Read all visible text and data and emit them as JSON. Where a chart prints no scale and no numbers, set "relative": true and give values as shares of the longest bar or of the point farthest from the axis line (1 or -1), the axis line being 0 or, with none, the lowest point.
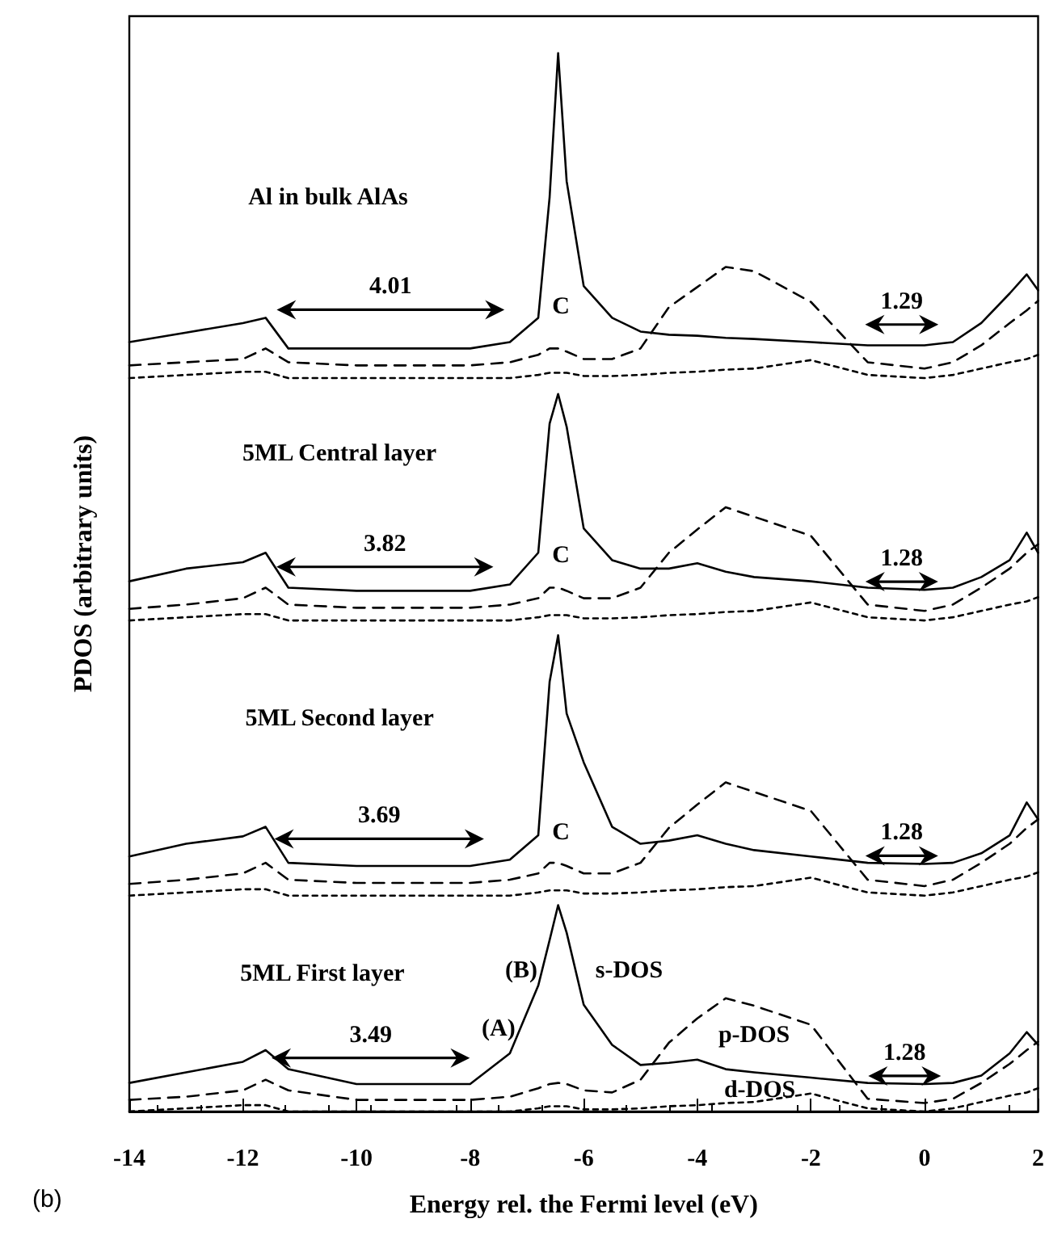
{
  "chart_data": {
    "type": "line",
    "relative": true,
    "xlabel": "Energy rel. the Fermi level (eV)",
    "ylabel": "PDOS (arbitrary units)",
    "xlim": [
      -14,
      2
    ],
    "xticks": [
      -14,
      -12,
      -10,
      -8,
      -6,
      -4,
      -2,
      0,
      2
    ],
    "grid": false,
    "marker": "none",
    "x": [
      -14,
      -13,
      -12,
      -11.6,
      -11.2,
      -10,
      -8,
      -7.3,
      -6.8,
      -6.6,
      -6.45,
      -6.3,
      -6.0,
      -5.5,
      -5,
      -4.5,
      -4,
      -3.5,
      -3,
      -2,
      -1,
      0,
      0.5,
      1,
      1.5,
      1.8,
      2
    ],
    "series": [
      {
        "color": "#000000",
        "line_style": "solid",
        "values": [
          0.727,
          0.736,
          0.745,
          0.75,
          0.721,
          0.721,
          0.721,
          0.727,
          0.75,
          0.864,
          1,
          0.879,
          0.78,
          0.75,
          0.737,
          0.734,
          0.733,
          0.731,
          0.73,
          0.727,
          0.724,
          0.724,
          0.727,
          0.745,
          0.773,
          0.791,
          0.776
        ]
      },
      {
        "color": "#000000",
        "line_style": "dashed",
        "values": [
          0.705,
          0.708,
          0.711,
          0.721,
          0.708,
          0.705,
          0.705,
          0.708,
          0.715,
          0.721,
          0.721,
          0.718,
          0.711,
          0.711,
          0.721,
          0.76,
          0.779,
          0.798,
          0.794,
          0.765,
          0.708,
          0.702,
          0.708,
          0.724,
          0.745,
          0.757,
          0.766
        ]
      },
      {
        "color": "#000000",
        "line_style": "dotted",
        "values": [
          0.693,
          0.696,
          0.699,
          0.699,
          0.693,
          0.693,
          0.693,
          0.693,
          0.696,
          0.698,
          0.698,
          0.698,
          0.695,
          0.695,
          0.696,
          0.698,
          0.699,
          0.701,
          0.702,
          0.71,
          0.696,
          0.693,
          0.696,
          0.702,
          0.708,
          0.711,
          0.715
        ]
      },
      {
        "color": "#000000",
        "line_style": "solid",
        "values": [
          0.501,
          0.513,
          0.519,
          0.528,
          0.495,
          0.492,
          0.492,
          0.498,
          0.528,
          0.65,
          0.678,
          0.647,
          0.551,
          0.521,
          0.513,
          0.513,
          0.518,
          0.51,
          0.505,
          0.501,
          0.495,
          0.493,
          0.495,
          0.505,
          0.521,
          0.547,
          0.528
        ]
      },
      {
        "color": "#000000",
        "line_style": "dashed",
        "values": [
          0.475,
          0.479,
          0.485,
          0.495,
          0.479,
          0.476,
          0.476,
          0.479,
          0.485,
          0.495,
          0.495,
          0.492,
          0.485,
          0.485,
          0.495,
          0.528,
          0.55,
          0.571,
          0.562,
          0.544,
          0.479,
          0.473,
          0.479,
          0.495,
          0.513,
          0.528,
          0.536
        ]
      },
      {
        "color": "#000000",
        "line_style": "dotted",
        "values": [
          0.464,
          0.467,
          0.47,
          0.47,
          0.464,
          0.464,
          0.464,
          0.464,
          0.467,
          0.469,
          0.469,
          0.469,
          0.466,
          0.466,
          0.467,
          0.469,
          0.47,
          0.472,
          0.473,
          0.481,
          0.467,
          0.464,
          0.467,
          0.473,
          0.479,
          0.482,
          0.486
        ]
      },
      {
        "color": "#000000",
        "line_style": "solid",
        "values": [
          0.241,
          0.253,
          0.26,
          0.269,
          0.235,
          0.232,
          0.232,
          0.238,
          0.261,
          0.406,
          0.45,
          0.376,
          0.33,
          0.269,
          0.253,
          0.256,
          0.261,
          0.253,
          0.247,
          0.241,
          0.235,
          0.234,
          0.235,
          0.244,
          0.261,
          0.292,
          0.276
        ]
      },
      {
        "color": "#000000",
        "line_style": "dashed",
        "values": [
          0.215,
          0.219,
          0.225,
          0.235,
          0.219,
          0.216,
          0.216,
          0.219,
          0.225,
          0.235,
          0.235,
          0.232,
          0.225,
          0.225,
          0.235,
          0.268,
          0.29,
          0.311,
          0.302,
          0.284,
          0.219,
          0.213,
          0.219,
          0.235,
          0.253,
          0.268,
          0.276
        ]
      },
      {
        "color": "#000000",
        "line_style": "dotted",
        "values": [
          0.204,
          0.207,
          0.21,
          0.21,
          0.204,
          0.204,
          0.204,
          0.204,
          0.207,
          0.209,
          0.209,
          0.209,
          0.206,
          0.206,
          0.207,
          0.209,
          0.21,
          0.212,
          0.213,
          0.221,
          0.207,
          0.204,
          0.207,
          0.213,
          0.219,
          0.222,
          0.226
        ]
      },
      {
        "color": "#000000",
        "line_style": "solid",
        "values": [
          0.027,
          0.037,
          0.047,
          0.058,
          0.04,
          0.026,
          0.026,
          0.055,
          0.119,
          0.162,
          0.195,
          0.169,
          0.101,
          0.063,
          0.044,
          0.046,
          0.049,
          0.04,
          0.037,
          0.032,
          0.027,
          0.026,
          0.027,
          0.034,
          0.055,
          0.075,
          0.063
        ]
      },
      {
        "color": "#000000",
        "line_style": "dashed",
        "values": [
          0.011,
          0.014,
          0.02,
          0.03,
          0.02,
          0.011,
          0.011,
          0.014,
          0.022,
          0.026,
          0.027,
          0.026,
          0.02,
          0.018,
          0.03,
          0.065,
          0.088,
          0.107,
          0.1,
          0.082,
          0.012,
          0.008,
          0.012,
          0.027,
          0.045,
          0.058,
          0.066
        ]
      },
      {
        "color": "#000000",
        "line_style": "dotted",
        "values": [
          0,
          0.003,
          0.006,
          0.006,
          0,
          0,
          0,
          0,
          0.003,
          0.005,
          0.005,
          0.005,
          0.002,
          0.002,
          0.003,
          0.005,
          0.006,
          0.008,
          0.009,
          0.017,
          0.003,
          0,
          0.003,
          0.009,
          0.015,
          0.018,
          0.022
        ]
      }
    ],
    "annotations": [
      "Al in bulk AlAs",
      "4.01",
      "C",
      "1.29",
      "5ML Central layer",
      "3.82",
      "C",
      "1.28",
      "5ML Second layer",
      "3.69",
      "C",
      "1.28",
      "5ML First layer",
      "(B)",
      "s-DOS",
      "(A)",
      "3.49",
      "p-DOS",
      "1.28",
      "d-DOS",
      "(b)"
    ]
  }
}
